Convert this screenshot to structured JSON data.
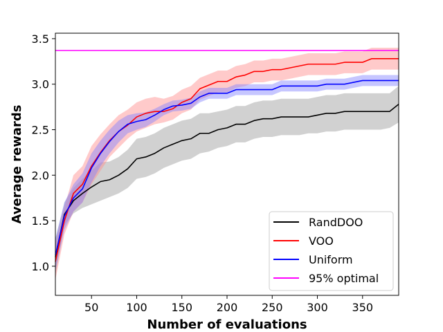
{
  "chart_data": {
    "type": "line",
    "title": "",
    "xlabel": "Number of evaluations",
    "ylabel": "Average rewards",
    "xlim": [
      10,
      390
    ],
    "ylim": [
      0.68,
      3.56
    ],
    "xticks": [
      50,
      100,
      150,
      200,
      250,
      300,
      350
    ],
    "yticks": [
      1.0,
      1.5,
      2.0,
      2.5,
      3.0,
      3.5
    ],
    "grid": false,
    "legend_position": "lower-right",
    "series": [
      {
        "name": "RandDOO",
        "color": "#000000",
        "band_color": "#999999",
        "x": [
          10,
          20,
          30,
          40,
          50,
          60,
          70,
          80,
          90,
          100,
          110,
          120,
          130,
          140,
          150,
          160,
          170,
          180,
          190,
          200,
          210,
          220,
          230,
          240,
          250,
          260,
          270,
          280,
          290,
          300,
          310,
          320,
          330,
          340,
          350,
          360,
          370,
          380,
          390
        ],
        "y": [
          1.1,
          1.57,
          1.72,
          1.8,
          1.87,
          1.93,
          1.95,
          2.0,
          2.07,
          2.18,
          2.2,
          2.24,
          2.3,
          2.34,
          2.38,
          2.4,
          2.46,
          2.46,
          2.5,
          2.52,
          2.56,
          2.56,
          2.6,
          2.62,
          2.62,
          2.64,
          2.64,
          2.64,
          2.64,
          2.66,
          2.68,
          2.68,
          2.7,
          2.7,
          2.7,
          2.7,
          2.7,
          2.7,
          2.78
        ],
        "lower": [
          0.9,
          1.45,
          1.58,
          1.64,
          1.68,
          1.72,
          1.76,
          1.8,
          1.86,
          1.96,
          1.98,
          2.02,
          2.08,
          2.12,
          2.16,
          2.18,
          2.24,
          2.26,
          2.3,
          2.32,
          2.36,
          2.36,
          2.4,
          2.42,
          2.42,
          2.44,
          2.44,
          2.44,
          2.46,
          2.46,
          2.48,
          2.48,
          2.5,
          2.5,
          2.5,
          2.5,
          2.5,
          2.52,
          2.58
        ],
        "upper": [
          1.3,
          1.7,
          1.86,
          1.96,
          2.05,
          2.14,
          2.15,
          2.2,
          2.28,
          2.4,
          2.42,
          2.46,
          2.52,
          2.56,
          2.6,
          2.62,
          2.68,
          2.68,
          2.7,
          2.72,
          2.76,
          2.76,
          2.8,
          2.82,
          2.82,
          2.84,
          2.84,
          2.84,
          2.84,
          2.86,
          2.88,
          2.88,
          2.9,
          2.9,
          2.9,
          2.9,
          2.9,
          2.9,
          2.98
        ]
      },
      {
        "name": "VOO",
        "color": "#ff0000",
        "band_color": "#ff8a8a",
        "x": [
          10,
          20,
          30,
          40,
          50,
          60,
          70,
          80,
          90,
          100,
          110,
          120,
          130,
          140,
          150,
          160,
          170,
          180,
          190,
          200,
          210,
          220,
          230,
          240,
          250,
          260,
          270,
          280,
          290,
          300,
          310,
          320,
          330,
          340,
          350,
          360,
          370,
          380,
          390
        ],
        "y": [
          1.05,
          1.5,
          1.8,
          1.9,
          2.1,
          2.25,
          2.38,
          2.48,
          2.55,
          2.64,
          2.68,
          2.7,
          2.7,
          2.73,
          2.8,
          2.84,
          2.95,
          2.99,
          3.03,
          3.03,
          3.08,
          3.1,
          3.14,
          3.14,
          3.16,
          3.16,
          3.18,
          3.2,
          3.22,
          3.22,
          3.22,
          3.22,
          3.24,
          3.24,
          3.24,
          3.28,
          3.28,
          3.28,
          3.28
        ],
        "lower": [
          0.85,
          1.35,
          1.6,
          1.7,
          1.9,
          2.05,
          2.2,
          2.3,
          2.4,
          2.48,
          2.52,
          2.56,
          2.58,
          2.61,
          2.68,
          2.72,
          2.83,
          2.87,
          2.91,
          2.91,
          2.96,
          2.98,
          3.02,
          3.02,
          3.04,
          3.04,
          3.06,
          3.08,
          3.1,
          3.1,
          3.1,
          3.1,
          3.12,
          3.12,
          3.12,
          3.16,
          3.16,
          3.16,
          3.16
        ],
        "upper": [
          1.25,
          1.65,
          2.0,
          2.1,
          2.32,
          2.45,
          2.56,
          2.66,
          2.72,
          2.8,
          2.84,
          2.86,
          2.84,
          2.87,
          2.94,
          2.98,
          3.07,
          3.11,
          3.15,
          3.15,
          3.2,
          3.22,
          3.26,
          3.26,
          3.28,
          3.28,
          3.3,
          3.32,
          3.34,
          3.34,
          3.34,
          3.34,
          3.36,
          3.36,
          3.36,
          3.4,
          3.4,
          3.4,
          3.4
        ]
      },
      {
        "name": "Uniform",
        "color": "#0000ff",
        "band_color": "#8080ff",
        "x": [
          10,
          20,
          30,
          40,
          50,
          60,
          70,
          80,
          90,
          100,
          110,
          120,
          130,
          140,
          150,
          160,
          170,
          180,
          190,
          200,
          210,
          220,
          230,
          240,
          250,
          260,
          270,
          280,
          290,
          300,
          310,
          320,
          330,
          340,
          350,
          360,
          370,
          380,
          390
        ],
        "y": [
          1.12,
          1.55,
          1.75,
          1.85,
          2.08,
          2.24,
          2.37,
          2.48,
          2.56,
          2.59,
          2.61,
          2.66,
          2.72,
          2.76,
          2.77,
          2.79,
          2.86,
          2.9,
          2.9,
          2.9,
          2.94,
          2.94,
          2.94,
          2.94,
          2.94,
          2.98,
          2.98,
          2.98,
          2.98,
          2.98,
          3.0,
          3.0,
          3.0,
          3.02,
          3.04,
          3.04,
          3.04,
          3.04,
          3.04
        ],
        "lower": [
          0.95,
          1.4,
          1.6,
          1.7,
          1.92,
          2.1,
          2.24,
          2.36,
          2.46,
          2.5,
          2.53,
          2.59,
          2.66,
          2.7,
          2.71,
          2.73,
          2.8,
          2.84,
          2.84,
          2.84,
          2.88,
          2.88,
          2.88,
          2.88,
          2.88,
          2.92,
          2.92,
          2.92,
          2.92,
          2.92,
          2.94,
          2.94,
          2.94,
          2.96,
          2.98,
          2.98,
          2.98,
          2.98,
          2.98
        ],
        "upper": [
          1.3,
          1.7,
          1.9,
          2.02,
          2.24,
          2.38,
          2.5,
          2.6,
          2.66,
          2.68,
          2.69,
          2.73,
          2.78,
          2.82,
          2.83,
          2.85,
          2.92,
          2.96,
          2.96,
          2.96,
          3.0,
          3.0,
          3.0,
          3.0,
          3.0,
          3.04,
          3.04,
          3.04,
          3.04,
          3.04,
          3.06,
          3.06,
          3.06,
          3.08,
          3.1,
          3.1,
          3.1,
          3.1,
          3.1
        ]
      },
      {
        "name": "95% optimal",
        "color": "#ff00ff",
        "x": [
          10,
          390
        ],
        "y": [
          3.37,
          3.37
        ]
      }
    ]
  }
}
